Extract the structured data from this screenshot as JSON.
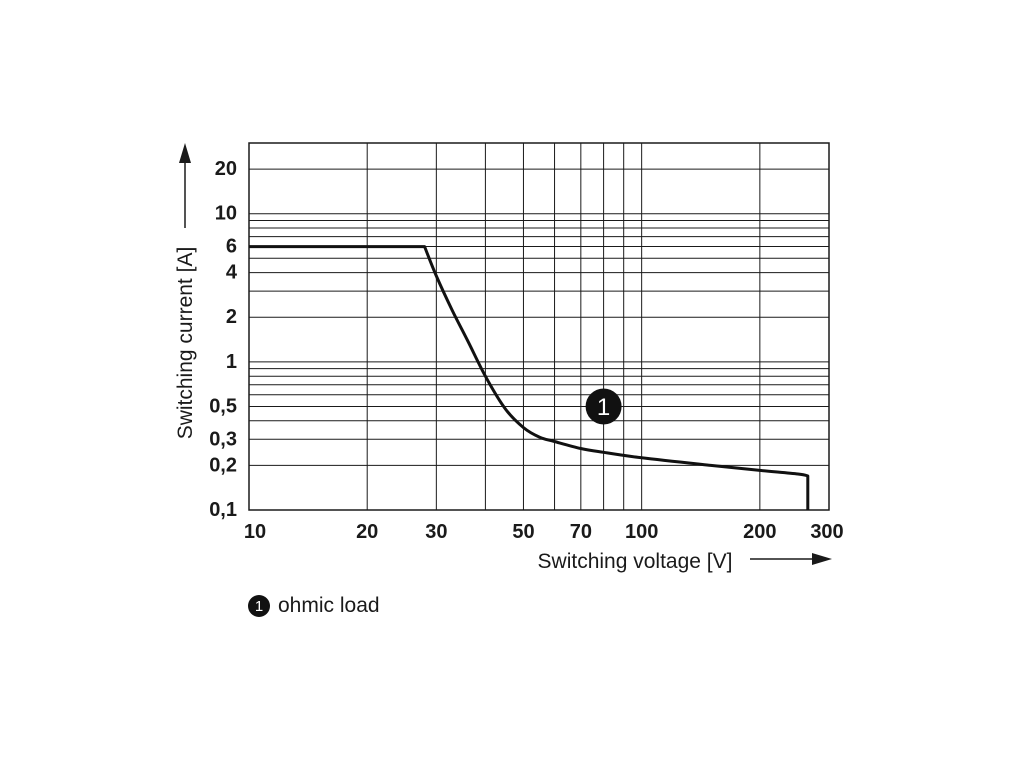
{
  "chart_data": {
    "type": "line",
    "xlabel": "Switching voltage [V]",
    "ylabel": "Switching current [A]",
    "x_scale": "log",
    "y_scale": "log",
    "xlim": [
      10,
      300
    ],
    "ylim": [
      0.1,
      30
    ],
    "grid": true,
    "x_gridlines": [
      10,
      20,
      30,
      40,
      50,
      60,
      70,
      80,
      90,
      100,
      200,
      300
    ],
    "y_gridlines": [
      0.1,
      0.2,
      0.3,
      0.4,
      0.5,
      0.6,
      0.7,
      0.8,
      0.9,
      1,
      2,
      3,
      4,
      5,
      6,
      7,
      8,
      9,
      10,
      20,
      30
    ],
    "x_tick_labels": [
      "10",
      "20",
      "30",
      "50",
      "70",
      "100",
      "200",
      "300"
    ],
    "x_tick_values": [
      10,
      20,
      30,
      50,
      70,
      100,
      200,
      300
    ],
    "y_tick_labels": [
      "0,1",
      "0,2",
      "0,3",
      "0,5",
      "1",
      "2",
      "4",
      "6",
      "10",
      "20"
    ],
    "y_tick_values": [
      0.1,
      0.2,
      0.3,
      0.5,
      1,
      2,
      4,
      6,
      10,
      20
    ],
    "series": [
      {
        "marker": "1",
        "x": [
          10,
          28,
          30,
          33,
          36,
          40,
          45,
          50,
          55,
          60,
          70,
          80,
          100,
          150,
          200,
          250,
          265,
          265
        ],
        "y": [
          6,
          6,
          3.8,
          2.2,
          1.4,
          0.8,
          0.48,
          0.36,
          0.31,
          0.29,
          0.26,
          0.245,
          0.225,
          0.2,
          0.185,
          0.175,
          0.17,
          0.1
        ]
      }
    ],
    "annotations": [
      {
        "text": "1",
        "x": 80,
        "y": 0.5
      }
    ],
    "legend": [
      {
        "marker": "1",
        "label": "ohmic load"
      }
    ]
  }
}
